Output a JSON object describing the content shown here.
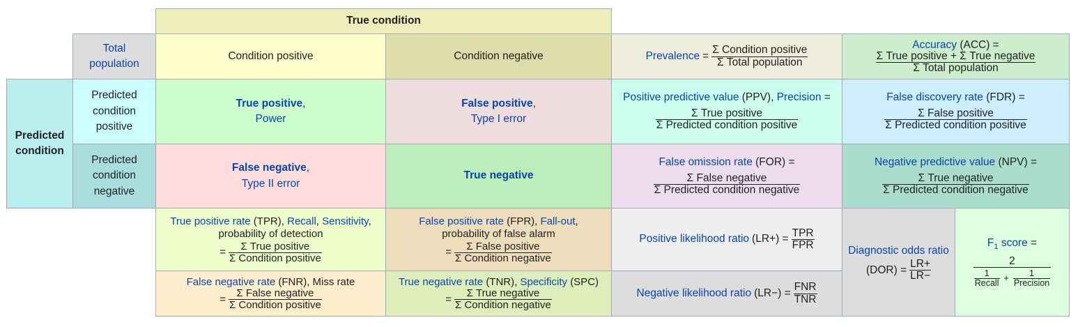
{
  "true_condition": "True condition",
  "total_population": "Total population",
  "condition_positive": "Condition positive",
  "condition_negative": "Condition negative",
  "predicted_condition": "Predicted condition",
  "predicted_condition_positive": "Predicted condition positive",
  "predicted_condition_negative": "Predicted condition negative",
  "prevalence": {
    "label": "Prevalence",
    "eq": "=",
    "num": "Σ Condition positive",
    "den": "Σ Total population"
  },
  "accuracy": {
    "label": "Accuracy",
    "abbr": "(ACC) =",
    "num": "Σ True positive + Σ True negative",
    "den": "Σ Total population"
  },
  "true_positive": {
    "label": "True positive",
    "comma": ",",
    "sub": "Power"
  },
  "false_positive": {
    "label": "False positive",
    "comma": ",",
    "sub": "Type I error"
  },
  "false_negative": {
    "label": "False negative",
    "comma": ",",
    "sub": "Type II error"
  },
  "true_negative": {
    "label": "True negative"
  },
  "ppv": {
    "label": "Positive predictive value",
    "abbr": "(PPV),",
    "label2": "Precision",
    "eq": "=",
    "num": "Σ True positive",
    "den": "Σ Predicted condition positive"
  },
  "fdr": {
    "label": "False discovery rate",
    "abbr": "(FDR) =",
    "num": "Σ False positive",
    "den": "Σ Predicted condition positive"
  },
  "for": {
    "label": "False omission rate",
    "abbr": "(FOR) =",
    "num": "Σ False negative",
    "den": "Σ Predicted condition negative"
  },
  "npv": {
    "label": "Negative predictive value",
    "abbr": "(NPV) =",
    "num": "Σ True negative",
    "den": "Σ Predicted condition negative"
  },
  "tpr": {
    "label": "True positive rate",
    "abbr": "(TPR),",
    "label2": "Recall",
    "comma": ",",
    "label3": "Sensitivity",
    "comma2": ",",
    "line2": "probability of detection",
    "eq": "=",
    "num": "Σ True positive",
    "den": "Σ Condition positive"
  },
  "fpr": {
    "label": "False positive rate",
    "abbr": "(FPR),",
    "label2": "Fall-out",
    "comma": ",",
    "line2": "probability of false alarm",
    "eq": "=",
    "num": "Σ False positive",
    "den": "Σ Condition negative"
  },
  "fnr": {
    "label": "False negative rate",
    "abbr": "(FNR), Miss rate",
    "eq": "=",
    "num": "Σ False negative",
    "den": "Σ Condition positive"
  },
  "tnr": {
    "label": "True negative rate",
    "abbr": "(TNR),",
    "label2": "Specificity",
    "abbr2": "(SPC)",
    "eq": "=",
    "num": "Σ True negative",
    "den": "Σ Condition negative"
  },
  "lr_pos": {
    "label": "Positive likelihood ratio",
    "abbr": "(LR+) =",
    "num": "TPR",
    "den": "FPR"
  },
  "lr_neg": {
    "label": "Negative likelihood ratio",
    "abbr": "(LR−) =",
    "num": "FNR",
    "den": "TNR"
  },
  "dor": {
    "label": "Diagnostic odds ratio",
    "abbr": "(DOR) =",
    "num": "LR+",
    "den": "LR−"
  },
  "f1": {
    "label": "F",
    "sub": "1",
    "label_tail": "score",
    "eq": "=",
    "num": "2",
    "num_inner": "1",
    "den_a": "Recall",
    "plus": "+",
    "den_b": "Precision"
  },
  "colors": {
    "true_condition": "#eeeebb",
    "total_pop": "#dddddd",
    "cond_pos": "#ffffcc",
    "cond_neg": "#ddddaa",
    "predicted": "#bbeeee",
    "pred_pos": "#ccffff",
    "pred_neg": "#aadddd",
    "tp": "#ccffcc",
    "fp": "#eedddd",
    "fn": "#ffdddd",
    "tn": "#bbeebb",
    "prevalence": "#eeeedd",
    "accuracy": "#cceecc",
    "ppv": "#ccffee",
    "fdr": "#cceeff",
    "for": "#eeddee",
    "npv": "#aaddcc",
    "tpr": "#eeffcc",
    "fpr": "#eeddbb",
    "fnr": "#ffeecc",
    "tnr": "#ddeebb",
    "lr_pos": "#eeeeee",
    "lr_neg": "#dddddd",
    "dor": "#dddddd",
    "f1": "#ddffdd"
  }
}
